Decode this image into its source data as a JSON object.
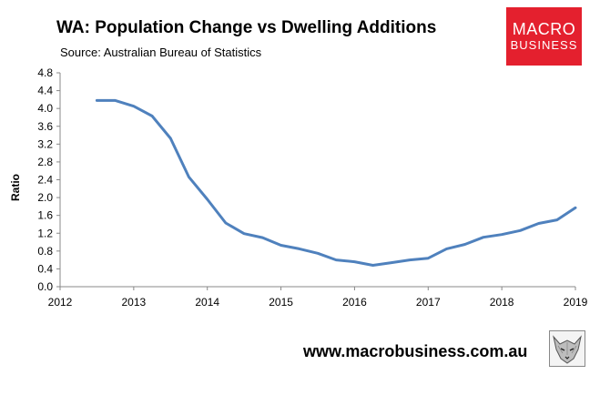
{
  "chart_data": {
    "type": "line",
    "title": "WA: Population Change vs Dwelling Additions",
    "subtitle": "Source: Australian Bureau of Statistics",
    "xlabel": "",
    "ylabel": "Ratio",
    "xlim": [
      2012,
      2019
    ],
    "ylim": [
      0,
      4.8
    ],
    "x_ticks": [
      "2012",
      "2013",
      "2014",
      "2015",
      "2016",
      "2017",
      "2018",
      "2019"
    ],
    "y_ticks": [
      "0.0",
      "0.4",
      "0.8",
      "1.2",
      "1.6",
      "2.0",
      "2.4",
      "2.8",
      "3.2",
      "3.6",
      "4.0",
      "4.4",
      "4.8"
    ],
    "grid": false,
    "legend": "none",
    "series": [
      {
        "color": "#4f81bd",
        "x": [
          2012.5,
          2012.75,
          2013.0,
          2013.25,
          2013.5,
          2013.75,
          2014.0,
          2014.25,
          2014.5,
          2014.75,
          2015.0,
          2015.25,
          2015.5,
          2015.75,
          2016.0,
          2016.25,
          2016.5,
          2016.75,
          2017.0,
          2017.25,
          2017.5,
          2017.75,
          2018.0,
          2018.25,
          2018.5,
          2018.75,
          2019.0
        ],
        "y": [
          4.18,
          4.18,
          4.05,
          3.83,
          3.33,
          2.46,
          1.96,
          1.43,
          1.19,
          1.1,
          0.93,
          0.85,
          0.75,
          0.6,
          0.56,
          0.48,
          0.54,
          0.6,
          0.64,
          0.85,
          0.95,
          1.11,
          1.17,
          1.26,
          1.42,
          1.5,
          1.77
        ]
      }
    ]
  },
  "footer": {
    "url": "www.macrobusiness.com.au"
  },
  "logo": {
    "line1": "MACRO",
    "line2": "BUSINESS",
    "color": "#e4202e"
  },
  "wolf_logo": {
    "icon": "wolf-icon"
  }
}
